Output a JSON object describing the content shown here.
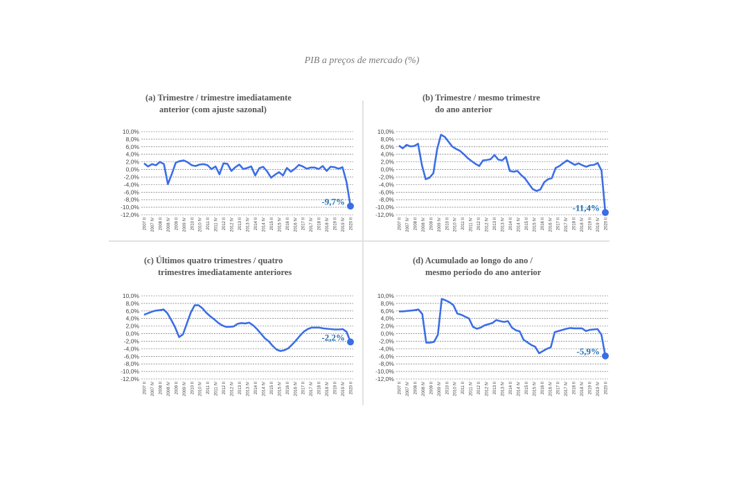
{
  "page_title": "PIB a preços de mercado (%)",
  "colors": {
    "line": "#3a6ee6",
    "label": "#1f6fb5",
    "grid": "#555555",
    "text": "#444444"
  },
  "chart_data": [
    {
      "type": "line",
      "title": "(a) Trimestre / trimestre imediatamente\nanterior (com ajuste sazonal)",
      "title_line1": "(a) Trimestre / trimestre imediatamente",
      "title_line2": "anterior (com ajuste sazonal)",
      "y_ticks": [
        "10,0%",
        "8,0%",
        "6,0%",
        "4,0%",
        "2,0%",
        "0,0%",
        "-2,0%",
        "-4,0%",
        "-6,0%",
        "-8,0%",
        "-10,0%",
        "-12,0%"
      ],
      "ylim": [
        -12,
        10
      ],
      "x_tick_labels": [
        "2007 II",
        "2007 IV",
        "2008 II",
        "2008 IV",
        "2009 II",
        "2009 IV",
        "2010 II",
        "2010 IV",
        "2011 II",
        "2011 IV",
        "2012 II",
        "2012 IV",
        "2013 II",
        "2013 IV",
        "2014 II",
        "2014 IV",
        "2015 II",
        "2015 IV",
        "2016 II",
        "2016 IV",
        "2017 II",
        "2017 IV",
        "2018 II",
        "2018 IV",
        "2019 II",
        "2019 IV",
        "2020 II"
      ],
      "values": [
        1.6,
        0.8,
        1.4,
        1.1,
        2.0,
        1.4,
        -3.9,
        -1.2,
        1.8,
        2.2,
        2.4,
        1.9,
        1.1,
        0.9,
        1.3,
        1.4,
        1.1,
        0.1,
        0.8,
        -1.3,
        1.6,
        1.5,
        -0.4,
        0.6,
        1.3,
        0.1,
        0.4,
        0.8,
        -1.6,
        0.3,
        0.7,
        -0.5,
        -2.2,
        -1.4,
        -0.7,
        -1.6,
        0.4,
        -0.6,
        0.2,
        1.2,
        0.8,
        0.2,
        0.5,
        0.5,
        0.1,
        0.9,
        -0.4,
        0.7,
        0.6,
        0.2,
        0.6,
        -3.3,
        -9.7
      ],
      "last_label": "-9,7%"
    },
    {
      "type": "line",
      "title": "(b) Trimestre / mesmo trimestre\ndo ano anterior",
      "title_line1": "(b) Trimestre / mesmo trimestre",
      "title_line2": "do ano anterior",
      "y_ticks": [
        "10,0%",
        "8,0%",
        "6,0%",
        "4,0%",
        "2,0%",
        "0,0%",
        "-2,0%",
        "-4,0%",
        "-6,0%",
        "-8,0%",
        "-10,0%",
        "-12,0%"
      ],
      "ylim": [
        -12,
        10
      ],
      "x_tick_labels": [
        "2007 II",
        "2007 IV",
        "2008 II",
        "2008 IV",
        "2009 II",
        "2009 IV",
        "2010 II",
        "2010 IV",
        "2011 II",
        "2011 IV",
        "2012 II",
        "2012 IV",
        "2013 II",
        "2013 IV",
        "2014 II",
        "2014 IV",
        "2015 II",
        "2015 IV",
        "2016 II",
        "2016 IV",
        "2017 II",
        "2017 IV",
        "2018 II",
        "2018 IV",
        "2019 II",
        "2019 IV",
        "2020 II"
      ],
      "values": [
        6.3,
        5.6,
        6.5,
        6.1,
        6.2,
        6.8,
        1.2,
        -2.6,
        -2.2,
        -1.0,
        5.4,
        9.2,
        8.6,
        7.3,
        6.0,
        5.4,
        4.9,
        4.0,
        3.0,
        2.2,
        1.5,
        0.9,
        2.4,
        2.5,
        2.7,
        3.8,
        2.6,
        2.4,
        3.3,
        -0.4,
        -0.6,
        -0.4,
        -1.5,
        -2.4,
        -3.8,
        -5.2,
        -5.7,
        -5.3,
        -3.4,
        -2.6,
        -2.3,
        0.4,
        0.9,
        1.7,
        2.4,
        1.8,
        1.2,
        1.6,
        1.1,
        0.7,
        1.1,
        1.2,
        1.7,
        -0.3,
        -11.4
      ],
      "last_label": "-11,4%"
    },
    {
      "type": "line",
      "title": "(c) Últimos quatro trimestres / quatro\ntrimestres imediatamente anteriores",
      "title_line1": "(c) Últimos quatro trimestres / quatro",
      "title_line2": "trimestres imediatamente anteriores",
      "y_ticks": [
        "10,0%",
        "8,0%",
        "6,0%",
        "4,0%",
        "2,0%",
        "0,0%",
        "-2,0%",
        "-4,0%",
        "-6,0%",
        "-8,0%",
        "-10,0%",
        "-12,0%"
      ],
      "ylim": [
        -12,
        10
      ],
      "x_tick_labels": [
        "2007 II",
        "2007 IV",
        "2008 II",
        "2008 IV",
        "2009 II",
        "2009 IV",
        "2010 II",
        "2010 IV",
        "2011 II",
        "2011 IV",
        "2012 II",
        "2012 IV",
        "2013 II",
        "2013 IV",
        "2014 II",
        "2014 IV",
        "2015 II",
        "2015 IV",
        "2016 II",
        "2016 IV",
        "2017 II",
        "2017 IV",
        "2018 II",
        "2018 IV",
        "2019 II",
        "2019 IV",
        "2020 II"
      ],
      "values": [
        5.0,
        5.4,
        5.8,
        6.1,
        6.2,
        6.4,
        5.4,
        3.6,
        1.6,
        -0.9,
        -0.2,
        2.7,
        5.6,
        7.5,
        7.5,
        6.7,
        5.5,
        4.6,
        3.8,
        2.9,
        2.2,
        1.8,
        1.8,
        1.9,
        2.6,
        2.8,
        2.7,
        2.9,
        2.2,
        1.2,
        0.0,
        -1.2,
        -2.0,
        -3.2,
        -4.2,
        -4.6,
        -4.4,
        -3.9,
        -2.9,
        -1.8,
        -0.6,
        0.5,
        1.2,
        1.6,
        1.6,
        1.6,
        1.4,
        1.3,
        1.2,
        1.1,
        1.1,
        1.2,
        0.5,
        -2.2
      ],
      "last_label": "-2,2%"
    },
    {
      "type": "line",
      "title": "(d) Acumulado ao longo do ano /\nmesmo período do ano anterior",
      "title_line1": "(d) Acumulado ao longo do ano /",
      "title_line2": "mesmo período do ano anterior",
      "y_ticks": [
        "10,0%",
        "8,0%",
        "6,0%",
        "4,0%",
        "2,0%",
        "0,0%",
        "-2,0%",
        "-4,0%",
        "-6,0%",
        "-8,0%",
        "-10,0%",
        "-12,0%"
      ],
      "ylim": [
        -12,
        10
      ],
      "x_tick_labels": [
        "2007 II",
        "2007 IV",
        "2008 II",
        "2008 IV",
        "2009 II",
        "2009 IV",
        "2010 II",
        "2010 IV",
        "2011 II",
        "2011 IV",
        "2012 II",
        "2012 IV",
        "2013 II",
        "2013 IV",
        "2014 II",
        "2014 IV",
        "2015 II",
        "2015 IV",
        "2016 II",
        "2016 IV",
        "2017 II",
        "2017 IV",
        "2018 II",
        "2018 IV",
        "2019 II",
        "2019 IV",
        "2020 II"
      ],
      "values": [
        5.9,
        5.9,
        6.0,
        6.1,
        6.2,
        6.4,
        5.2,
        -2.4,
        -2.4,
        -2.2,
        -0.3,
        9.2,
        8.8,
        8.3,
        7.5,
        5.3,
        5.0,
        4.5,
        4.0,
        1.8,
        1.3,
        1.6,
        2.2,
        2.5,
        2.8,
        3.6,
        3.3,
        3.1,
        3.3,
        1.6,
        0.9,
        0.6,
        -1.6,
        -2.3,
        -3.0,
        -3.5,
        -5.2,
        -4.6,
        -4.0,
        -3.6,
        0.4,
        0.7,
        1.0,
        1.3,
        1.5,
        1.4,
        1.4,
        1.4,
        0.7,
        1.0,
        1.1,
        1.2,
        -0.3,
        -5.9
      ],
      "last_label": "-5,9%"
    }
  ]
}
